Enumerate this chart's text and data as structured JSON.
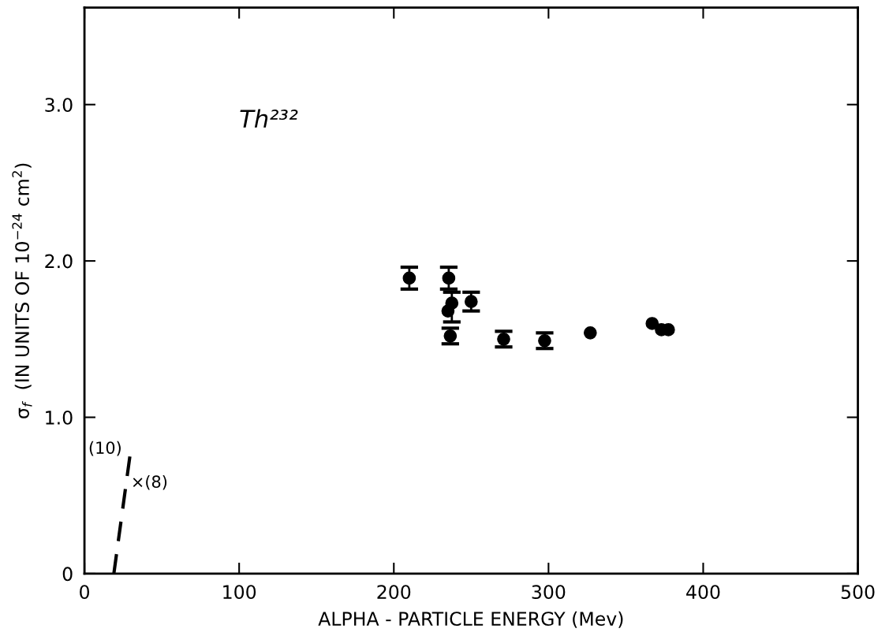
{
  "chart_data": {
    "type": "scatter",
    "xlabel": "ALPHA - PARTICLE ENERGY (Mev)",
    "ylabel": "σ$_{f}$  (IN UNITS OF 10$^{−24}$ cm$^{2}$)",
    "xlim": [
      0,
      500
    ],
    "ylim": [
      0,
      3.62
    ],
    "xticks": [
      0,
      100,
      200,
      300,
      400,
      500
    ],
    "yticks": [
      {
        "value": 0,
        "label": "0"
      },
      {
        "value": 1.0,
        "label": "1.0"
      },
      {
        "value": 2.0,
        "label": "2.0"
      },
      {
        "value": 3.0,
        "label": "3.0"
      }
    ],
    "grid": false,
    "marker": "circle",
    "series": [
      {
        "color": "#000000",
        "x": [
          210,
          235.5,
          237.5,
          235,
          236.5,
          250,
          271,
          297.5,
          327,
          367,
          373,
          377.5
        ],
        "values": [
          1.89,
          1.89,
          1.73,
          1.68,
          1.52,
          1.74,
          1.5,
          1.49,
          1.54,
          1.6,
          1.56,
          1.56
        ],
        "errors": [
          0.07,
          0.07,
          [
            1.61,
            1.8
          ],
          null,
          0.05,
          0.06,
          0.05,
          0.05,
          null,
          null,
          null,
          null
        ]
      },
      {
        "type": "line",
        "color": "#000000",
        "line_style": "dashed",
        "marker": "none",
        "x": [
          19,
          29.5
        ],
        "values": [
          0,
          0.76
        ]
      }
    ],
    "annotations": [
      "Th²³²",
      "(10)",
      "×(8)"
    ]
  }
}
